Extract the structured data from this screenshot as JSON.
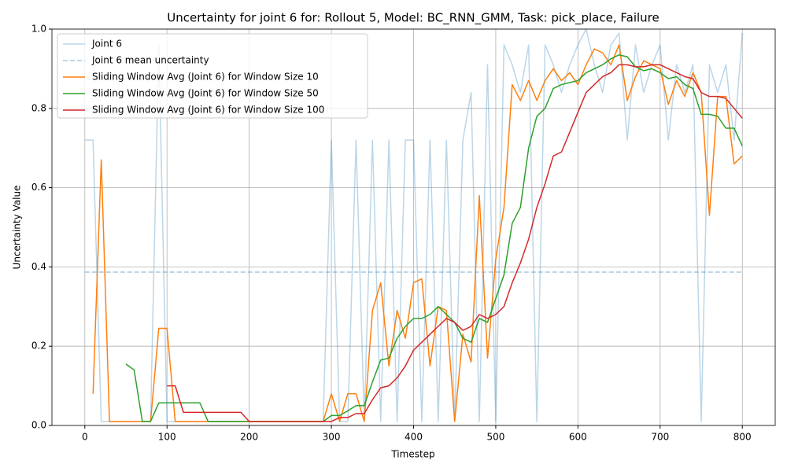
{
  "chart_data": {
    "type": "line",
    "title": "Uncertainty for joint 6 for: Rollout 5, Model: BC_RNN_GMM, Task: pick_place, Failure",
    "xlabel": "Timestep",
    "ylabel": "Uncertainty Value",
    "x": [
      0,
      10,
      20,
      30,
      40,
      50,
      60,
      70,
      80,
      90,
      100,
      110,
      120,
      130,
      140,
      150,
      160,
      170,
      180,
      190,
      200,
      210,
      220,
      230,
      240,
      250,
      260,
      270,
      280,
      290,
      300,
      310,
      320,
      330,
      340,
      350,
      360,
      370,
      380,
      390,
      400,
      410,
      420,
      430,
      440,
      450,
      460,
      470,
      480,
      490,
      500,
      510,
      520,
      530,
      540,
      550,
      560,
      570,
      580,
      590,
      600,
      610,
      620,
      630,
      640,
      650,
      660,
      670,
      680,
      690,
      700,
      710,
      720,
      730,
      740,
      750,
      760,
      770,
      780,
      790,
      800
    ],
    "series": [
      {
        "name": "Joint 6",
        "color": "#1f77b4",
        "alpha": 0.3,
        "values": [
          0.72,
          0.72,
          0.01,
          0.01,
          0.01,
          0.01,
          0.01,
          0.01,
          0.01,
          0.96,
          0.01,
          0.01,
          0.01,
          0.01,
          0.01,
          0.01,
          0.01,
          0.01,
          0.01,
          0.01,
          0.01,
          0.01,
          0.01,
          0.01,
          0.01,
          0.01,
          0.01,
          0.01,
          0.01,
          0.01,
          0.72,
          0.01,
          0.01,
          0.72,
          0.01,
          0.72,
          0.01,
          0.72,
          0.01,
          0.72,
          0.72,
          0.01,
          0.72,
          0.01,
          0.72,
          0.01,
          0.72,
          0.84,
          0.01,
          0.91,
          0.01,
          0.96,
          0.91,
          0.84,
          0.96,
          0.01,
          0.96,
          0.91,
          0.84,
          0.91,
          0.96,
          1.0,
          0.91,
          0.84,
          0.96,
          0.99,
          0.72,
          0.96,
          0.84,
          0.91,
          0.96,
          0.72,
          0.91,
          0.84,
          0.91,
          0.01,
          0.91,
          0.84,
          0.91,
          0.72,
          0.99
        ]
      },
      {
        "name": "Joint 6 mean uncertainty",
        "color": "#1f77b4",
        "alpha": 0.4,
        "dashed": true,
        "value": 0.387
      },
      {
        "name": "Sliding Window Avg (Joint 6) for Window Size 10",
        "color": "#ff7f0e",
        "alpha": 1,
        "values": [
          null,
          0.08,
          0.67,
          0.01,
          0.01,
          0.01,
          0.01,
          0.01,
          0.01,
          0.245,
          0.245,
          0.01,
          0.01,
          0.01,
          0.01,
          0.01,
          0.01,
          0.01,
          0.01,
          0.01,
          0.01,
          0.01,
          0.01,
          0.01,
          0.01,
          0.01,
          0.01,
          0.01,
          0.01,
          0.01,
          0.08,
          0.01,
          0.08,
          0.08,
          0.01,
          0.29,
          0.36,
          0.15,
          0.29,
          0.22,
          0.36,
          0.37,
          0.15,
          0.3,
          0.29,
          0.01,
          0.23,
          0.16,
          0.58,
          0.17,
          0.42,
          0.55,
          0.86,
          0.82,
          0.87,
          0.82,
          0.87,
          0.9,
          0.87,
          0.89,
          0.86,
          0.91,
          0.95,
          0.94,
          0.91,
          0.96,
          0.82,
          0.88,
          0.92,
          0.91,
          0.9,
          0.81,
          0.87,
          0.83,
          0.89,
          0.84,
          0.53,
          0.83,
          0.83,
          0.66,
          0.68
        ]
      },
      {
        "name": "Sliding Window Avg (Joint 6) for Window Size 50",
        "color": "#2ca02c",
        "alpha": 1,
        "values": [
          null,
          null,
          null,
          null,
          null,
          0.155,
          0.14,
          0.01,
          0.01,
          0.057,
          0.057,
          0.057,
          0.057,
          0.057,
          0.057,
          0.01,
          0.01,
          0.01,
          0.01,
          0.01,
          0.01,
          0.01,
          0.01,
          0.01,
          0.01,
          0.01,
          0.01,
          0.01,
          0.01,
          0.01,
          0.025,
          0.025,
          0.037,
          0.05,
          0.05,
          0.11,
          0.165,
          0.17,
          0.22,
          0.25,
          0.27,
          0.27,
          0.28,
          0.3,
          0.28,
          0.26,
          0.22,
          0.21,
          0.27,
          0.26,
          0.32,
          0.38,
          0.51,
          0.55,
          0.7,
          0.78,
          0.8,
          0.85,
          0.86,
          0.865,
          0.87,
          0.89,
          0.9,
          0.91,
          0.925,
          0.935,
          0.93,
          0.905,
          0.895,
          0.9,
          0.89,
          0.875,
          0.88,
          0.86,
          0.85,
          0.785,
          0.785,
          0.78,
          0.75,
          0.75,
          0.705
        ]
      },
      {
        "name": "Sliding Window Avg (Joint 6) for Window Size 100",
        "color": "#d62728",
        "alpha": 1,
        "values": [
          null,
          null,
          null,
          null,
          null,
          null,
          null,
          null,
          null,
          null,
          0.1,
          0.1,
          0.033,
          0.033,
          0.033,
          0.033,
          0.033,
          0.033,
          0.033,
          0.033,
          0.01,
          0.01,
          0.01,
          0.01,
          0.01,
          0.01,
          0.01,
          0.01,
          0.01,
          0.01,
          0.01,
          0.02,
          0.02,
          0.03,
          0.03,
          0.065,
          0.095,
          0.1,
          0.12,
          0.15,
          0.19,
          0.21,
          0.23,
          0.25,
          0.27,
          0.26,
          0.24,
          0.25,
          0.28,
          0.27,
          0.28,
          0.3,
          0.36,
          0.41,
          0.47,
          0.55,
          0.61,
          0.68,
          0.69,
          0.74,
          0.79,
          0.84,
          0.86,
          0.88,
          0.89,
          0.91,
          0.91,
          0.905,
          0.905,
          0.91,
          0.91,
          0.9,
          0.89,
          0.88,
          0.875,
          0.84,
          0.83,
          0.83,
          0.825,
          0.8,
          0.775
        ]
      }
    ],
    "xlim": [
      -40,
      840
    ],
    "ylim": [
      0,
      1
    ],
    "xticks": [
      0,
      100,
      200,
      300,
      400,
      500,
      600,
      700,
      800
    ],
    "yticks": [
      {
        "value": 0,
        "label": "0.0"
      },
      0.2,
      0.4,
      0.6,
      0.8,
      {
        "value": 1,
        "label": "1.0"
      }
    ],
    "grid": true,
    "legend": "upper-left"
  }
}
